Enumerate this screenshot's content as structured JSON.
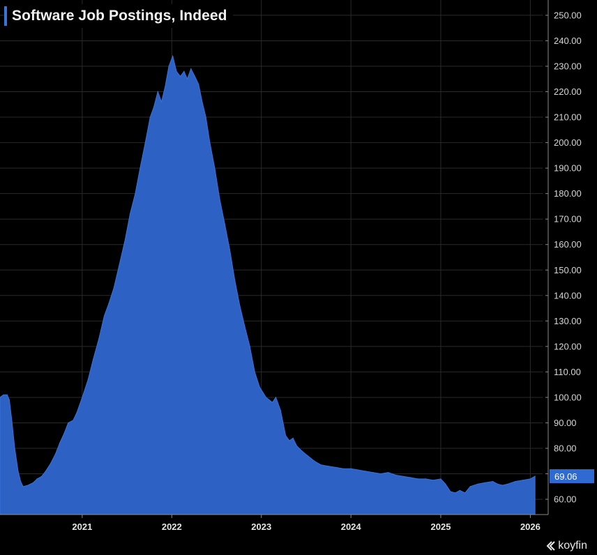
{
  "chart_data": {
    "type": "area",
    "title": "Software Job Postings, Indeed",
    "xlabel": "",
    "ylabel": "",
    "x_unit": "date",
    "xlim": [
      "2020-02-01",
      "2026-02-20"
    ],
    "ylim": [
      54,
      256
    ],
    "y_ticks": [
      "60.00",
      "70.00",
      "80.00",
      "90.00",
      "100.00",
      "110.00",
      "120.00",
      "130.00",
      "140.00",
      "150.00",
      "160.00",
      "170.00",
      "180.00",
      "190.00",
      "200.00",
      "210.00",
      "220.00",
      "230.00",
      "240.00",
      "250.00"
    ],
    "x_ticks": [
      {
        "label": "2021",
        "date": "2021-01-01"
      },
      {
        "label": "2022",
        "date": "2022-01-01"
      },
      {
        "label": "2023",
        "date": "2023-01-01"
      },
      {
        "label": "2024",
        "date": "2024-01-01"
      },
      {
        "label": "2025",
        "date": "2025-01-01"
      },
      {
        "label": "2026",
        "date": "2026-01-01"
      }
    ],
    "grid": true,
    "last_value_label": "69.06",
    "series": [
      {
        "color": "#2d62c4",
        "points": [
          [
            "2020-02-01",
            100
          ],
          [
            "2020-02-15",
            101
          ],
          [
            "2020-03-01",
            101
          ],
          [
            "2020-03-10",
            99
          ],
          [
            "2020-03-20",
            91
          ],
          [
            "2020-04-01",
            80
          ],
          [
            "2020-04-15",
            71
          ],
          [
            "2020-04-25",
            67
          ],
          [
            "2020-05-05",
            65
          ],
          [
            "2020-05-25",
            65.5
          ],
          [
            "2020-06-15",
            66.5
          ],
          [
            "2020-07-01",
            68
          ],
          [
            "2020-07-20",
            69
          ],
          [
            "2020-08-05",
            71
          ],
          [
            "2020-08-25",
            74
          ],
          [
            "2020-09-15",
            78
          ],
          [
            "2020-10-01",
            82
          ],
          [
            "2020-10-20",
            86
          ],
          [
            "2020-11-05",
            90
          ],
          [
            "2020-11-25",
            91
          ],
          [
            "2020-12-10",
            94
          ],
          [
            "2021-01-01",
            100
          ],
          [
            "2021-01-25",
            107
          ],
          [
            "2021-02-15",
            115
          ],
          [
            "2021-03-10",
            123
          ],
          [
            "2021-04-01",
            132
          ],
          [
            "2021-04-20",
            137
          ],
          [
            "2021-05-10",
            143
          ],
          [
            "2021-06-01",
            152
          ],
          [
            "2021-06-25",
            162
          ],
          [
            "2021-07-15",
            172
          ],
          [
            "2021-08-05",
            180
          ],
          [
            "2021-08-25",
            190
          ],
          [
            "2021-09-15",
            200
          ],
          [
            "2021-10-05",
            210
          ],
          [
            "2021-10-20",
            214
          ],
          [
            "2021-11-05",
            220
          ],
          [
            "2021-11-20",
            216
          ],
          [
            "2021-12-05",
            222
          ],
          [
            "2021-12-20",
            230
          ],
          [
            "2022-01-05",
            234
          ],
          [
            "2022-01-20",
            228
          ],
          [
            "2022-02-05",
            226
          ],
          [
            "2022-02-20",
            228
          ],
          [
            "2022-03-05",
            225
          ],
          [
            "2022-03-20",
            229
          ],
          [
            "2022-04-05",
            226
          ],
          [
            "2022-04-20",
            223
          ],
          [
            "2022-05-05",
            216
          ],
          [
            "2022-05-20",
            210
          ],
          [
            "2022-06-05",
            200
          ],
          [
            "2022-06-25",
            190
          ],
          [
            "2022-07-15",
            178
          ],
          [
            "2022-08-05",
            168
          ],
          [
            "2022-08-25",
            158
          ],
          [
            "2022-09-15",
            146
          ],
          [
            "2022-10-05",
            136
          ],
          [
            "2022-10-25",
            128
          ],
          [
            "2022-11-15",
            120
          ],
          [
            "2022-12-05",
            110
          ],
          [
            "2022-12-25",
            104
          ],
          [
            "2023-01-20",
            100
          ],
          [
            "2023-02-15",
            98
          ],
          [
            "2023-03-01",
            100
          ],
          [
            "2023-03-20",
            95
          ],
          [
            "2023-04-10",
            85
          ],
          [
            "2023-04-25",
            83
          ],
          [
            "2023-05-10",
            84
          ],
          [
            "2023-05-25",
            81
          ],
          [
            "2023-06-15",
            79
          ],
          [
            "2023-07-10",
            77
          ],
          [
            "2023-08-05",
            75
          ],
          [
            "2023-09-01",
            73.5
          ],
          [
            "2023-10-01",
            73
          ],
          [
            "2023-11-01",
            72.5
          ],
          [
            "2023-12-01",
            72
          ],
          [
            "2024-01-01",
            72
          ],
          [
            "2024-02-01",
            71.5
          ],
          [
            "2024-03-01",
            71
          ],
          [
            "2024-04-01",
            70.5
          ],
          [
            "2024-05-01",
            70
          ],
          [
            "2024-06-01",
            70.5
          ],
          [
            "2024-07-01",
            69.5
          ],
          [
            "2024-08-01",
            69
          ],
          [
            "2024-09-01",
            68.5
          ],
          [
            "2024-10-01",
            68
          ],
          [
            "2024-11-01",
            68
          ],
          [
            "2024-12-01",
            67.5
          ],
          [
            "2025-01-01",
            68
          ],
          [
            "2025-01-20",
            66
          ],
          [
            "2025-02-10",
            63
          ],
          [
            "2025-03-01",
            62.5
          ],
          [
            "2025-03-20",
            63.5
          ],
          [
            "2025-04-10",
            62.5
          ],
          [
            "2025-05-01",
            65
          ],
          [
            "2025-06-01",
            66
          ],
          [
            "2025-07-01",
            66.5
          ],
          [
            "2025-08-01",
            67
          ],
          [
            "2025-08-20",
            66
          ],
          [
            "2025-09-10",
            65.5
          ],
          [
            "2025-10-01",
            66
          ],
          [
            "2025-11-01",
            67
          ],
          [
            "2025-12-01",
            67.5
          ],
          [
            "2026-01-01",
            68
          ],
          [
            "2026-01-20",
            69.06
          ]
        ]
      }
    ]
  },
  "branding": {
    "logo_text": "koyfin",
    "logo_icon": "koyfin-chevron-icon"
  },
  "colors": {
    "background": "#000000",
    "area_fill": "#2d62c4",
    "grid": "#2a2a2a",
    "accent": "#3b74d9",
    "last_value_badge": "#2f6ad3"
  }
}
